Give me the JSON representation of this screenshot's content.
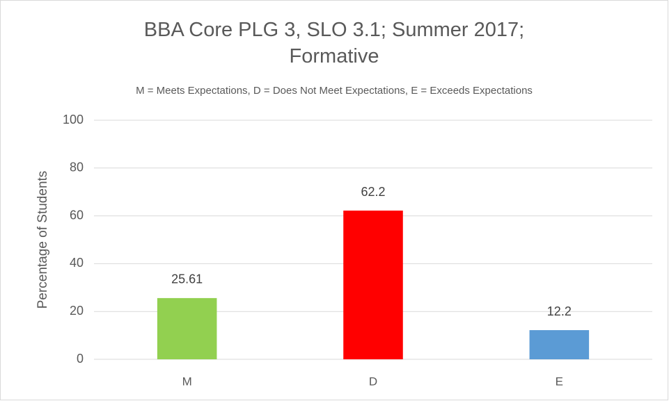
{
  "chart_data": {
    "type": "bar",
    "title": "BBA Core PLG 3, SLO 3.1; Summer 2017; Formative",
    "subtitle": "M = Meets Expectations, D = Does Not Meet Expectations, E = Exceeds Expectations",
    "y_label": "Percentage of Students",
    "categories": [
      "M",
      "D",
      "E"
    ],
    "values": [
      25.61,
      62.2,
      12.2
    ],
    "colors": [
      "#92d050",
      "#ff0000",
      "#5b9bd5"
    ],
    "ylim": [
      0,
      100
    ],
    "yticks": [
      0,
      20,
      40,
      60,
      80,
      100
    ],
    "grid": true
  }
}
